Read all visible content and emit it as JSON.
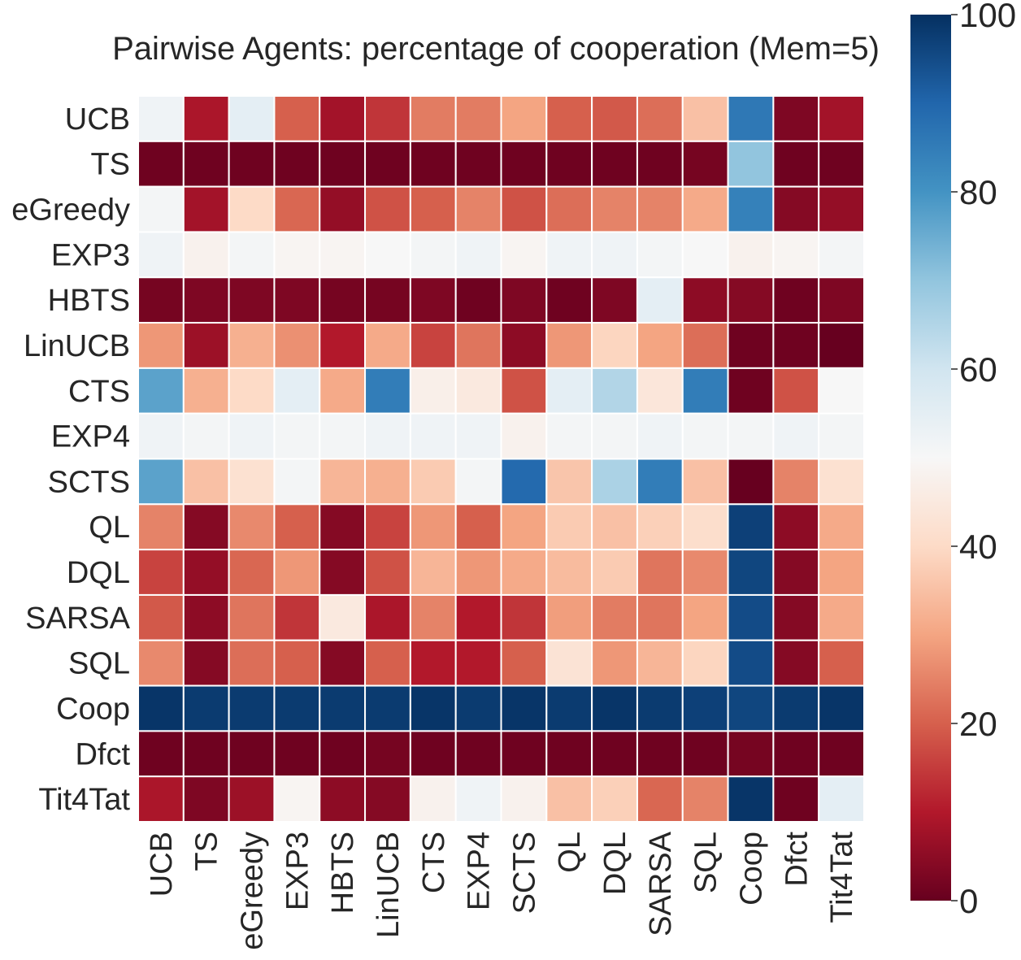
{
  "chart_data": {
    "type": "heatmap",
    "title": "Pairwise Agents: percentage of cooperation (Mem=5)",
    "row_labels": [
      "UCB",
      "TS",
      "eGreedy",
      "EXP3",
      "HBTS",
      "LinUCB",
      "CTS",
      "EXP4",
      "SCTS",
      "QL",
      "DQL",
      "SARSA",
      "SQL",
      "Coop",
      "Dfct",
      "Tit4Tat"
    ],
    "col_labels": [
      "UCB",
      "TS",
      "eGreedy",
      "EXP3",
      "HBTS",
      "LinUCB",
      "CTS",
      "EXP4",
      "SCTS",
      "QL",
      "DQL",
      "SARSA",
      "SQL",
      "Coop",
      "Dfct",
      "Tit4Tat"
    ],
    "values": [
      [
        52,
        9,
        55,
        20,
        8,
        14,
        24,
        24,
        30,
        20,
        19,
        22,
        35,
        86,
        3,
        8
      ],
      [
        1,
        1,
        1,
        1,
        1,
        1,
        1,
        1,
        1,
        1,
        1,
        1,
        2,
        70,
        1,
        1
      ],
      [
        51,
        8,
        40,
        21,
        6,
        18,
        20,
        25,
        18,
        22,
        25,
        25,
        31,
        84,
        4,
        6
      ],
      [
        52,
        48,
        51,
        49,
        49,
        50,
        51,
        52,
        49,
        52,
        52,
        51,
        50,
        48,
        49,
        51
      ],
      [
        2,
        3,
        3,
        3,
        2,
        2,
        3,
        1,
        3,
        1,
        3,
        55,
        5,
        4,
        1,
        3
      ],
      [
        28,
        7,
        32,
        27,
        10,
        31,
        16,
        23,
        5,
        28,
        39,
        30,
        22,
        1,
        1,
        0
      ],
      [
        77,
        32,
        40,
        55,
        31,
        85,
        47,
        45,
        18,
        55,
        65,
        44,
        85,
        1,
        18,
        50
      ],
      [
        52,
        51,
        52,
        51,
        51,
        52,
        52,
        52,
        48,
        51,
        51,
        52,
        51,
        51,
        52,
        51
      ],
      [
        77,
        35,
        42,
        51,
        33,
        32,
        37,
        51,
        89,
        36,
        66,
        85,
        35,
        0,
        25,
        42
      ],
      [
        25,
        4,
        26,
        20,
        4,
        16,
        28,
        20,
        30,
        37,
        35,
        38,
        41,
        97,
        5,
        31
      ],
      [
        16,
        6,
        21,
        28,
        4,
        18,
        33,
        28,
        31,
        34,
        37,
        23,
        26,
        96,
        4,
        30
      ],
      [
        19,
        5,
        23,
        14,
        45,
        9,
        25,
        10,
        14,
        29,
        24,
        23,
        30,
        95,
        4,
        31
      ],
      [
        26,
        4,
        22,
        20,
        4,
        20,
        10,
        10,
        20,
        43,
        28,
        33,
        39,
        95,
        4,
        20
      ],
      [
        99,
        98,
        98,
        98,
        98,
        98,
        99,
        98,
        99,
        98,
        99,
        98,
        97,
        96,
        98,
        99
      ],
      [
        1,
        1,
        1,
        1,
        1,
        2,
        1,
        1,
        1,
        1,
        1,
        1,
        1,
        2,
        1,
        1
      ],
      [
        9,
        3,
        7,
        49,
        5,
        4,
        48,
        52,
        48,
        35,
        38,
        21,
        25,
        99,
        1,
        55
      ]
    ],
    "colorbar": {
      "min": 0,
      "max": 100,
      "ticks": [
        "0",
        "20",
        "40",
        "60",
        "80",
        "100"
      ]
    },
    "colormap": "RdBu",
    "colormap_stops": [
      "#67001f",
      "#b2182b",
      "#d6604d",
      "#f4a582",
      "#fddbc7",
      "#f7f7f7",
      "#d1e5f0",
      "#92c5de",
      "#4393c3",
      "#2166ac",
      "#053061"
    ],
    "text_color": "#262626",
    "grid_line_color": "#ffffff"
  }
}
